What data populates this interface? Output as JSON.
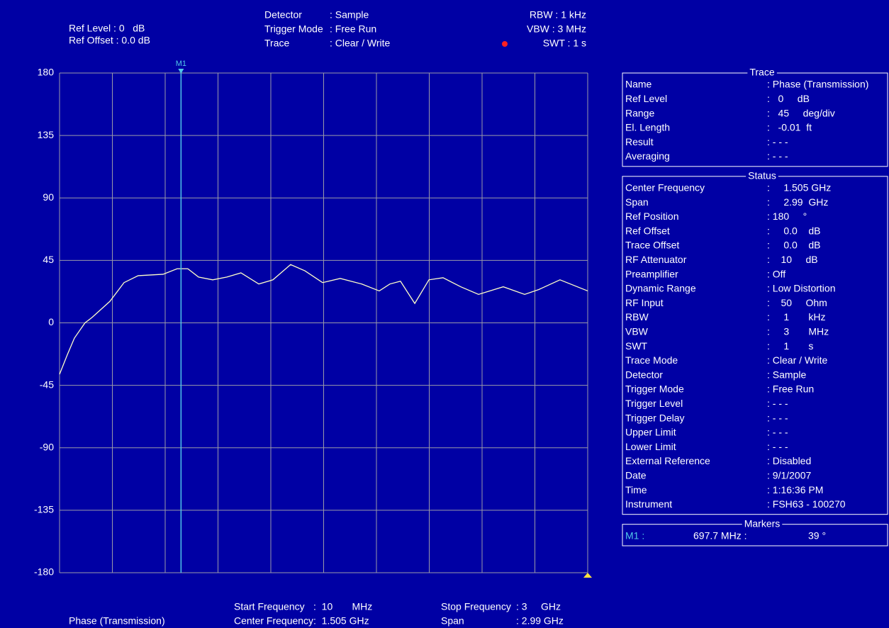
{
  "header": {
    "left": [
      "Ref Level : 0   dB",
      "Ref Offset : 0.0 dB"
    ],
    "middle": [
      [
        "Detector",
        ": Sample"
      ],
      [
        "Trigger Mode",
        ": Free Run"
      ],
      [
        "Trace",
        ": Clear / Write"
      ]
    ],
    "right": [
      "RBW : 1 kHz",
      "VBW : 3 MHz",
      "SWT : 1 s"
    ]
  },
  "chart_data": {
    "type": "line",
    "x": [
      10,
      54,
      94,
      154,
      195,
      295,
      375,
      455,
      596,
      676,
      736,
      797,
      877,
      957,
      1037,
      1138,
      1218,
      1318,
      1399,
      1499,
      1599,
      1720,
      1820,
      1880,
      1940,
      2021,
      2101,
      2181,
      2281,
      2382,
      2522,
      2643,
      2723,
      2843,
      3000
    ],
    "series": [
      {
        "name": "Phase (Transmission)",
        "color": "#ffffc8",
        "values": [
          -37,
          -23,
          -11,
          0,
          4,
          15.5,
          29,
          34,
          35,
          39,
          39,
          33,
          31,
          33,
          36,
          28,
          31,
          42,
          37.5,
          29,
          32,
          28,
          23,
          28,
          30,
          14,
          31,
          32.5,
          26,
          20.5,
          26,
          20.5,
          24,
          31,
          23
        ]
      }
    ],
    "xlim": [
      10,
      3000
    ],
    "xticks": [
      10,
      309,
      608,
      907,
      1206,
      1505,
      1804,
      2103,
      2402,
      2701,
      3000
    ],
    "ylim": [
      -180,
      180
    ],
    "yticks": [
      180,
      135,
      90,
      45,
      0,
      -45,
      -90,
      -135,
      -180
    ],
    "grid": true,
    "markers": [
      {
        "label": "M1",
        "x": 697.7,
        "y": 39,
        "color": "#50c8e8"
      }
    ]
  },
  "panels": [
    {
      "title": "Trace",
      "rows": [
        [
          "Name",
          ": Phase (Transmission)"
        ],
        [
          "Ref Level",
          ":   0     dB"
        ],
        [
          "Range",
          ":   45     deg/div"
        ],
        [
          "El. Length",
          ":   -0.01  ft"
        ],
        [
          "Result",
          ": - - -"
        ],
        [
          "Averaging",
          ": - - -"
        ]
      ]
    },
    {
      "title": "Status",
      "rows": [
        [
          "Center Frequency",
          ":     1.505 GHz"
        ],
        [
          "Span",
          ":     2.99  GHz"
        ],
        [
          "Ref Position",
          ": 180     °"
        ],
        [
          "Ref Offset",
          ":     0.0    dB"
        ],
        [
          "Trace Offset",
          ":     0.0    dB"
        ],
        [
          "RF Attenuator",
          ":    10     dB"
        ],
        [
          "Preamplifier",
          ": Off"
        ],
        [
          "Dynamic Range",
          ": Low Distortion"
        ],
        [
          "RF Input",
          ":    50     Ohm"
        ],
        [
          "RBW",
          ":     1       kHz"
        ],
        [
          "VBW",
          ":     3       MHz"
        ],
        [
          "SWT",
          ":     1       s"
        ],
        [
          "Trace Mode",
          ": Clear / Write"
        ],
        [
          "Detector",
          ": Sample"
        ],
        [
          "Trigger Mode",
          ": Free Run"
        ],
        [
          "Trigger Level",
          ": - - -"
        ],
        [
          "Trigger Delay",
          ": - - -"
        ],
        [
          "Upper Limit",
          ": - - -"
        ],
        [
          "Lower Limit",
          ": - - -"
        ],
        [
          "External Reference",
          ": Disabled"
        ],
        [
          "Date",
          ": 9/1/2007"
        ],
        [
          "Time",
          ": 1:16:36 PM"
        ],
        [
          "Instrument",
          ": FSH63 - 100270"
        ]
      ]
    },
    {
      "title": "Markers",
      "rows": [
        [
          "M1 :",
          "697.7 MHz :",
          "39 °"
        ]
      ]
    }
  ],
  "footer": {
    "trace_name": "Phase (Transmission)",
    "left": [
      [
        "Start Frequency",
        ":  10       MHz"
      ],
      [
        "Center Frequency",
        ":  1.505 GHz"
      ]
    ],
    "right": [
      [
        "Stop Frequency",
        ": 3     GHz"
      ],
      [
        "Span",
        ": 2.99 GHz"
      ]
    ]
  }
}
